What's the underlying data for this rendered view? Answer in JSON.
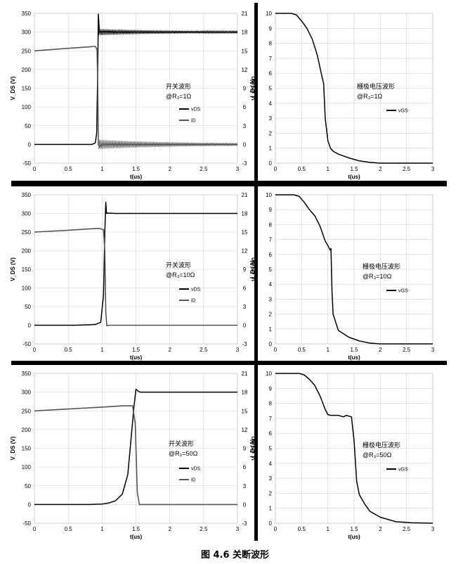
{
  "caption": "图 4.6  关断波形",
  "chart_data": [
    {
      "type": "line",
      "panel": "switching-waveform",
      "annotation": "开关波形",
      "condition": "@R₃=1Ω",
      "xlabel": "t(us)",
      "ylabel": "V_DS (V)",
      "y2label": "I_D (A)",
      "xlim": [
        0,
        3
      ],
      "ylim": [
        -50,
        350
      ],
      "y2lim": [
        -3,
        21
      ],
      "xticks": [
        "0",
        "0.5",
        "1",
        "1.5",
        "2",
        "2.5",
        "3"
      ],
      "yticks": [
        "-50",
        "0",
        "50",
        "100",
        "150",
        "200",
        "250",
        "300",
        "350"
      ],
      "y2ticks": [
        "-3",
        "0",
        "3",
        "6",
        "9",
        "12",
        "15",
        "18",
        "21"
      ],
      "grid": true,
      "legend": [
        "vDS",
        "iD"
      ],
      "series": [
        {
          "name": "vDS",
          "axis": "left",
          "color": "#000000",
          "x": [
            0,
            0.5,
            0.85,
            0.9,
            0.92,
            0.935,
            0.945,
            0.96,
            1.0,
            1.2,
            1.6,
            3
          ],
          "y": [
            0,
            0,
            0,
            4,
            30,
            200,
            348,
            300,
            302,
            300,
            300,
            300
          ]
        },
        {
          "name": "iD",
          "axis": "right",
          "color": "#555555",
          "x": [
            0,
            0.5,
            0.9,
            0.925,
            0.935,
            0.945,
            0.96,
            1.0,
            1.5,
            3
          ],
          "y": [
            15,
            15.4,
            15.7,
            15.2,
            10,
            0,
            -0.4,
            0,
            0,
            0
          ]
        }
      ]
    },
    {
      "type": "line",
      "panel": "gate-voltage-waveform",
      "annotation": "栅极电压波形",
      "condition": "@R₃=1Ω",
      "xlabel": "t(us)",
      "ylabel": "V_GS (V)",
      "xlim": [
        0,
        3
      ],
      "ylim": [
        0,
        10
      ],
      "xticks": [
        "0",
        "0.5",
        "1",
        "1.5",
        "2",
        "2.5",
        "3"
      ],
      "yticks": [
        "0",
        "1",
        "2",
        "3",
        "4",
        "5",
        "6",
        "7",
        "8",
        "9",
        "10"
      ],
      "grid": true,
      "legend": [
        "vGS"
      ],
      "series": [
        {
          "name": "vGS",
          "color": "#000000",
          "x": [
            0,
            0.3,
            0.4,
            0.5,
            0.6,
            0.7,
            0.8,
            0.88,
            0.92,
            0.95,
            1.0,
            1.05,
            1.1,
            1.2,
            1.4,
            1.6,
            1.8,
            2.0,
            3.0
          ],
          "y": [
            10,
            10,
            9.9,
            9.5,
            9.0,
            8.3,
            7.2,
            5.9,
            5.3,
            3.0,
            1.5,
            1.0,
            0.8,
            0.6,
            0.35,
            0.15,
            0.05,
            0,
            0
          ]
        }
      ]
    },
    {
      "type": "line",
      "panel": "switching-waveform",
      "annotation": "开关波形",
      "condition": "@R₃=10Ω",
      "xlabel": "t(us)",
      "ylabel": "V_DS (V)",
      "y2label": "I_D (A)",
      "xlim": [
        0,
        3
      ],
      "ylim": [
        -50,
        350
      ],
      "y2lim": [
        -3,
        21
      ],
      "xticks": [
        "0",
        "0.5",
        "1",
        "1.5",
        "2",
        "2.5",
        "3"
      ],
      "yticks": [
        "-50",
        "0",
        "50",
        "100",
        "150",
        "200",
        "250",
        "300",
        "350"
      ],
      "y2ticks": [
        "-3",
        "0",
        "3",
        "6",
        "9",
        "12",
        "15",
        "18",
        "21"
      ],
      "grid": true,
      "legend": [
        "vDS",
        "iD"
      ],
      "series": [
        {
          "name": "vDS",
          "axis": "left",
          "color": "#000000",
          "x": [
            0,
            0.6,
            0.9,
            0.98,
            1.02,
            1.04,
            1.055,
            1.065,
            1.08,
            1.2,
            3
          ],
          "y": [
            0,
            0,
            2,
            8,
            80,
            250,
            330,
            300,
            301,
            300,
            300
          ]
        },
        {
          "name": "iD",
          "axis": "right",
          "color": "#555555",
          "x": [
            0,
            0.5,
            0.95,
            1.02,
            1.04,
            1.055,
            1.07,
            1.1,
            3
          ],
          "y": [
            15,
            15.3,
            15.6,
            15.4,
            12,
            2,
            -0.1,
            0,
            0
          ]
        }
      ]
    },
    {
      "type": "line",
      "panel": "gate-voltage-waveform",
      "annotation": "栅极电压波形",
      "condition": "@R₃=10Ω",
      "xlabel": "t(us)",
      "ylabel": "V_GS (V)",
      "xlim": [
        0,
        3
      ],
      "ylim": [
        0,
        10
      ],
      "xticks": [
        "0",
        "0.5",
        "1",
        "1.5",
        "2",
        "2.5",
        "3"
      ],
      "yticks": [
        "0",
        "1",
        "2",
        "3",
        "4",
        "5",
        "6",
        "7",
        "8",
        "9",
        "10"
      ],
      "grid": true,
      "legend": [
        "vGS"
      ],
      "series": [
        {
          "name": "vGS",
          "color": "#000000",
          "x": [
            0,
            0.35,
            0.45,
            0.55,
            0.65,
            0.75,
            0.85,
            0.95,
            1.0,
            1.04,
            1.06,
            1.08,
            1.1,
            1.2,
            1.4,
            1.6,
            1.8,
            2.0,
            3.0
          ],
          "y": [
            10,
            10,
            9.9,
            9.5,
            9.0,
            8.6,
            7.9,
            6.9,
            6.6,
            6.3,
            6.4,
            3.5,
            2.0,
            0.9,
            0.45,
            0.2,
            0.05,
            0,
            0
          ]
        }
      ]
    },
    {
      "type": "line",
      "panel": "switching-waveform",
      "annotation": "开关波形",
      "condition": "@R₃=50Ω",
      "xlabel": "t(us)",
      "ylabel": "V_DS (V)",
      "y2label": "I_D (A)",
      "xlim": [
        0,
        3
      ],
      "ylim": [
        -50,
        350
      ],
      "y2lim": [
        -3,
        21
      ],
      "xticks": [
        "0",
        "0.5",
        "1",
        "1.5",
        "2",
        "2.5",
        "3"
      ],
      "yticks": [
        "-50",
        "0",
        "50",
        "100",
        "150",
        "200",
        "250",
        "300",
        "350"
      ],
      "y2ticks": [
        "-3",
        "0",
        "3",
        "6",
        "9",
        "12",
        "15",
        "18",
        "21"
      ],
      "grid": true,
      "legend": [
        "vDS",
        "iD"
      ],
      "series": [
        {
          "name": "vDS",
          "axis": "left",
          "color": "#000000",
          "x": [
            0,
            0.8,
            1.0,
            1.1,
            1.2,
            1.3,
            1.38,
            1.43,
            1.47,
            1.5,
            1.53,
            1.56,
            1.6,
            3
          ],
          "y": [
            0,
            0,
            1,
            4,
            10,
            28,
            80,
            180,
            260,
            308,
            303,
            300,
            300,
            300
          ]
        },
        {
          "name": "iD",
          "axis": "right",
          "color": "#555555",
          "x": [
            0,
            0.5,
            1.0,
            1.3,
            1.45,
            1.49,
            1.52,
            1.55,
            1.6,
            3
          ],
          "y": [
            15,
            15.3,
            15.6,
            15.8,
            15.8,
            13,
            2,
            0,
            0,
            0
          ]
        }
      ]
    },
    {
      "type": "line",
      "panel": "gate-voltage-waveform",
      "annotation": "栅极电压波形",
      "condition": "@R₃=50Ω",
      "xlabel": "t(us)",
      "ylabel": "V_GS (V)",
      "xlim": [
        0,
        3
      ],
      "ylim": [
        0,
        10
      ],
      "xticks": [
        "0",
        "0.5",
        "1",
        "1.5",
        "2",
        "2.5",
        "3"
      ],
      "yticks": [
        "0",
        "1",
        "2",
        "3",
        "4",
        "5",
        "6",
        "7",
        "8",
        "9",
        "10"
      ],
      "grid": true,
      "legend": [
        "vGS"
      ],
      "series": [
        {
          "name": "vGS",
          "color": "#000000",
          "x": [
            0,
            0.45,
            0.55,
            0.65,
            0.75,
            0.85,
            0.95,
            1.0,
            1.05,
            1.2,
            1.3,
            1.35,
            1.45,
            1.5,
            1.55,
            1.6,
            1.7,
            1.8,
            2.0,
            2.3,
            2.6,
            3.0
          ],
          "y": [
            10,
            10,
            9.9,
            9.6,
            9.2,
            8.5,
            7.6,
            7.25,
            7.2,
            7.2,
            7.1,
            7.2,
            7.1,
            5.5,
            2.8,
            1.9,
            1.3,
            0.8,
            0.4,
            0.1,
            0.03,
            0
          ]
        }
      ]
    }
  ]
}
